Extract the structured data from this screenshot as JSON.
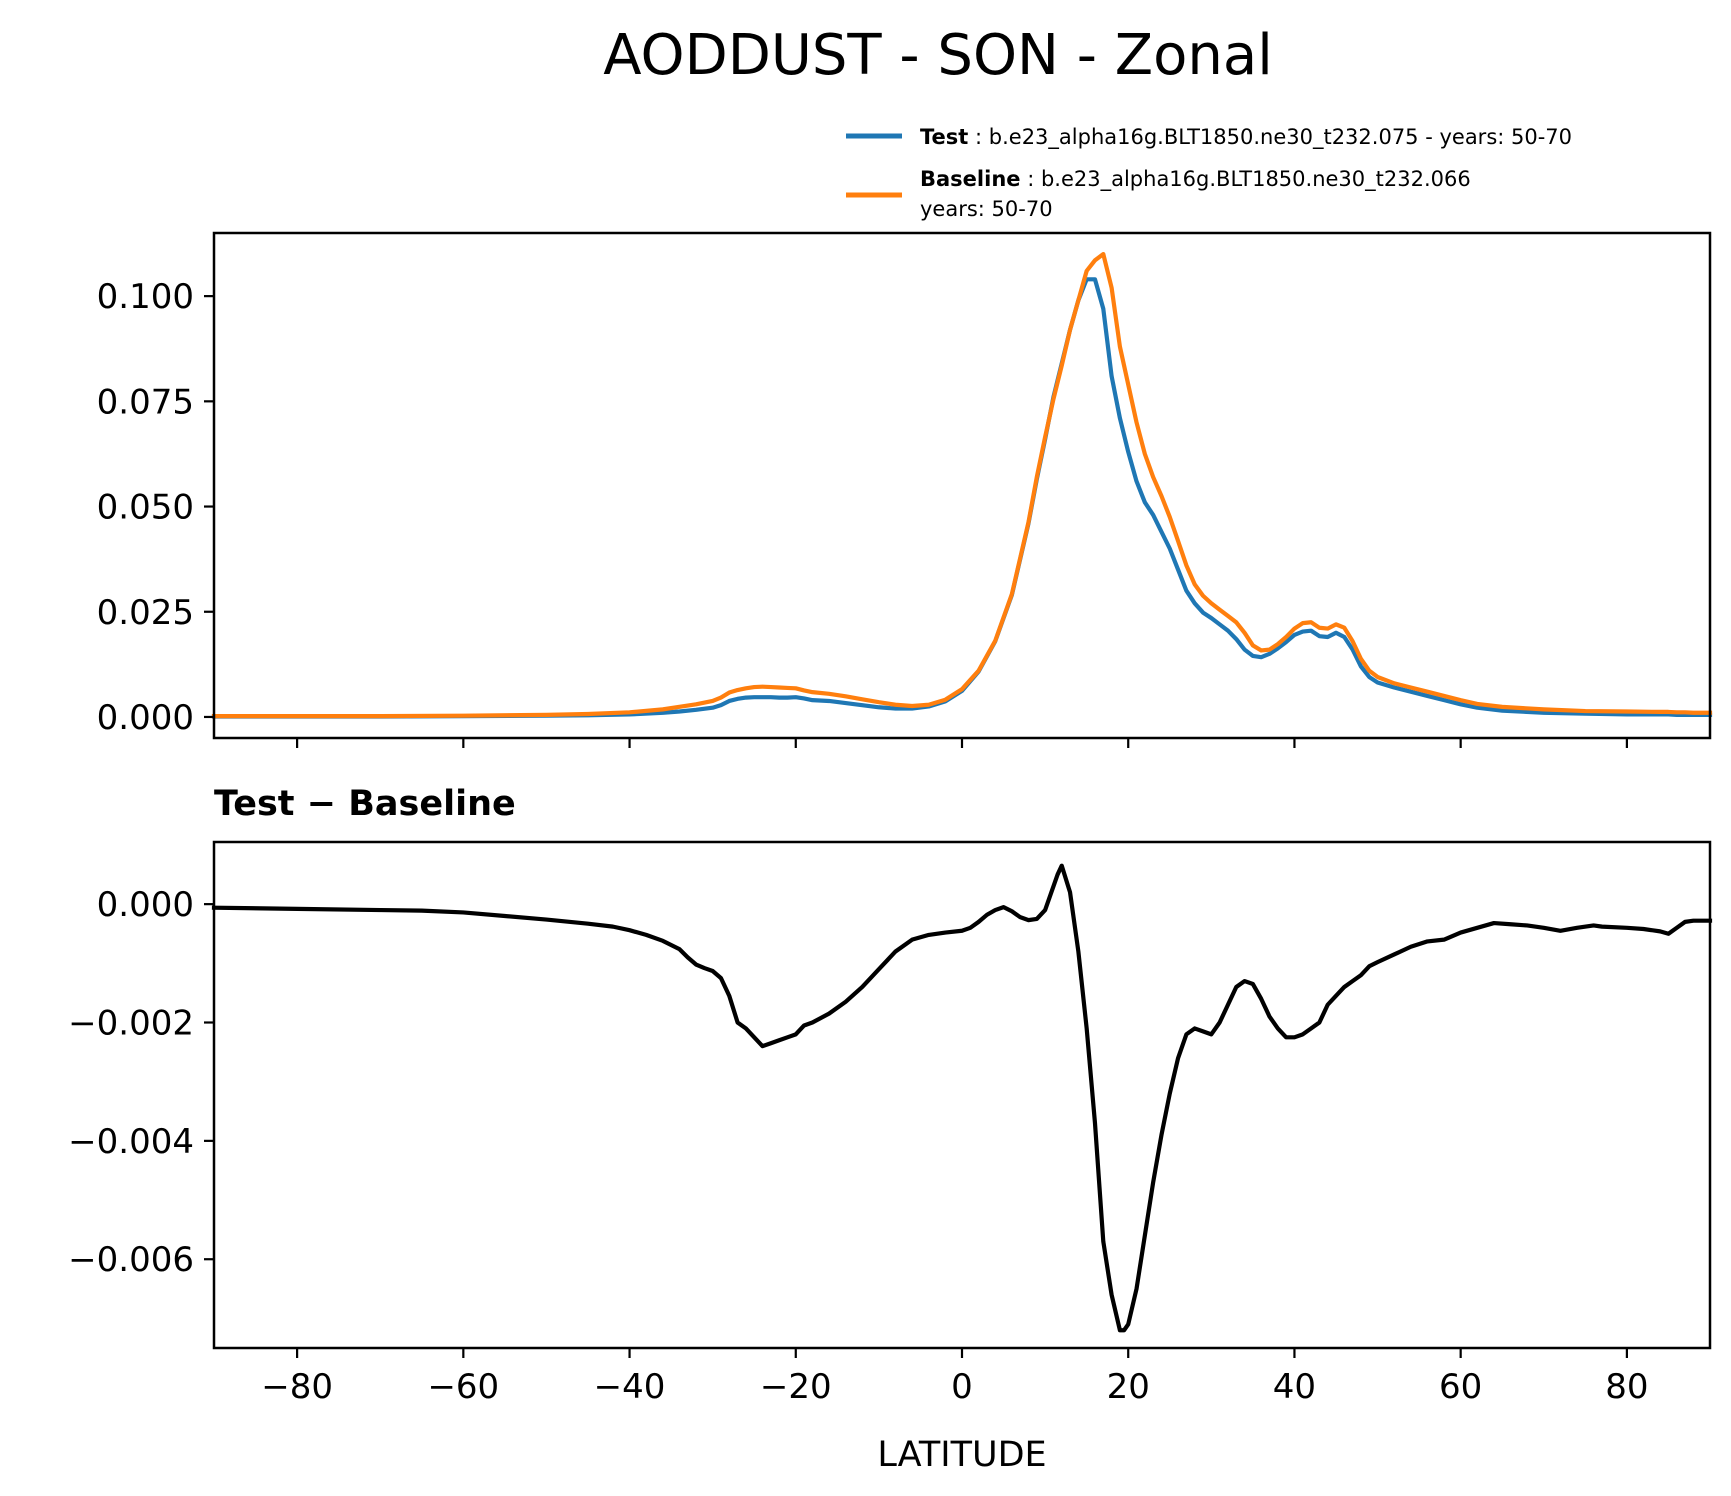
{
  "chart_data": [
    {
      "type": "line",
      "title": "AODDUST - SON - Zonal",
      "xlabel": "",
      "ylabel": "",
      "xlim": [
        -90,
        90
      ],
      "ylim": [
        -0.005,
        0.115
      ],
      "x_ticks": [
        -80,
        -60,
        -40,
        -20,
        0,
        20,
        40,
        60,
        80
      ],
      "y_ticks": [
        0.0,
        0.025,
        0.05,
        0.075,
        0.1
      ],
      "y_tick_labels": [
        "0.000",
        "0.025",
        "0.050",
        "0.075",
        "0.100"
      ],
      "legend": {
        "placement": "above-top-right",
        "entries": [
          {
            "bold": "Test",
            "sep": " : ",
            "text": "b.e23_alpha16g.BLT1850.ne30_t232.075 - years: 50-70",
            "text2": ""
          },
          {
            "bold": "Baseline",
            "sep": " : ",
            "text": "b.e23_alpha16g.BLT1850.ne30_t232.066",
            "text2": "years: 50-70"
          }
        ]
      },
      "x": [
        -90,
        -80,
        -70,
        -60,
        -50,
        -45,
        -40,
        -36,
        -34,
        -32,
        -30,
        -29,
        -28,
        -27,
        -26,
        -25,
        -24,
        -23,
        -22,
        -21,
        -20,
        -19,
        -18,
        -16,
        -14,
        -12,
        -10,
        -8,
        -6,
        -4,
        -2,
        0,
        2,
        4,
        6,
        8,
        9,
        10,
        11,
        12,
        13,
        14,
        15,
        16,
        17,
        18,
        19,
        20,
        21,
        22,
        23,
        24,
        25,
        26,
        27,
        28,
        29,
        30,
        31,
        32,
        33,
        34,
        35,
        36,
        37,
        38,
        39,
        40,
        41,
        42,
        43,
        44,
        45,
        46,
        47,
        48,
        49,
        50,
        52,
        54,
        56,
        58,
        60,
        62,
        65,
        70,
        75,
        80,
        84,
        85,
        86,
        87,
        88,
        90
      ],
      "series": [
        {
          "name": "Test",
          "color": "#1f77b4",
          "values": [
            0.0001,
            0.0001,
            0.0001,
            0.0002,
            0.0003,
            0.0004,
            0.0006,
            0.001,
            0.0013,
            0.0017,
            0.0022,
            0.0028,
            0.0038,
            0.0043,
            0.0046,
            0.0047,
            0.0047,
            0.0047,
            0.0046,
            0.0046,
            0.0047,
            0.0044,
            0.004,
            0.0038,
            0.0033,
            0.0028,
            0.0023,
            0.002,
            0.002,
            0.0025,
            0.0037,
            0.0062,
            0.0108,
            0.018,
            0.029,
            0.046,
            0.0565,
            0.066,
            0.076,
            0.084,
            0.092,
            0.099,
            0.104,
            0.104,
            0.097,
            0.081,
            0.071,
            0.063,
            0.056,
            0.051,
            0.048,
            0.044,
            0.04,
            0.035,
            0.03,
            0.027,
            0.0248,
            0.0235,
            0.022,
            0.0205,
            0.0185,
            0.016,
            0.0145,
            0.0142,
            0.015,
            0.0163,
            0.0178,
            0.0195,
            0.0203,
            0.0205,
            0.0192,
            0.019,
            0.02,
            0.019,
            0.016,
            0.012,
            0.0095,
            0.0082,
            0.007,
            0.006,
            0.005,
            0.004,
            0.003,
            0.0022,
            0.0015,
            0.001,
            0.0008,
            0.0006,
            0.0006,
            0.0006,
            0.0005,
            0.0005,
            0.0005,
            0.0005
          ]
        },
        {
          "name": "Baseline",
          "color": "#ff7f0e",
          "values": [
            0.0002,
            0.0002,
            0.0002,
            0.0003,
            0.0005,
            0.0007,
            0.0011,
            0.0018,
            0.0024,
            0.003,
            0.0038,
            0.0046,
            0.0058,
            0.0064,
            0.0068,
            0.0071,
            0.0072,
            0.0071,
            0.007,
            0.0069,
            0.0068,
            0.0063,
            0.0059,
            0.0055,
            0.0049,
            0.0042,
            0.0035,
            0.0029,
            0.0026,
            0.0029,
            0.0041,
            0.0066,
            0.011,
            0.0181,
            0.0292,
            0.0463,
            0.057,
            0.0665,
            0.0755,
            0.0835,
            0.092,
            0.099,
            0.106,
            0.1085,
            0.11,
            0.102,
            0.088,
            0.079,
            0.07,
            0.0625,
            0.057,
            0.0525,
            0.0475,
            0.0418,
            0.036,
            0.0315,
            0.0288,
            0.027,
            0.0255,
            0.024,
            0.0225,
            0.02,
            0.017,
            0.0158,
            0.016,
            0.0173,
            0.019,
            0.021,
            0.0223,
            0.0225,
            0.0212,
            0.021,
            0.022,
            0.0212,
            0.018,
            0.0138,
            0.011,
            0.0095,
            0.008,
            0.007,
            0.006,
            0.005,
            0.004,
            0.0031,
            0.0024,
            0.0018,
            0.0014,
            0.0013,
            0.0012,
            0.0012,
            0.0011,
            0.0011,
            0.001,
            0.001
          ]
        }
      ]
    },
    {
      "type": "line",
      "title": "Test − Baseline",
      "xlabel": "LATITUDE",
      "ylabel": "",
      "xlim": [
        -90,
        90
      ],
      "ylim": [
        -0.0075,
        0.00105
      ],
      "x_ticks": [
        -80,
        -60,
        -40,
        -20,
        0,
        20,
        40,
        60,
        80
      ],
      "x_tick_labels": [
        "−80",
        "−60",
        "−40",
        "−20",
        "0",
        "20",
        "40",
        "60",
        "80"
      ],
      "y_ticks": [
        0.0,
        -0.002,
        -0.004,
        -0.006
      ],
      "y_tick_labels": [
        "0.000",
        "−0.002",
        "−0.004",
        "−0.006"
      ],
      "x": [
        -90,
        -80,
        -70,
        -65,
        -60,
        -55,
        -50,
        -45,
        -42,
        -40,
        -38,
        -36,
        -34,
        -33,
        -32,
        -31,
        -30,
        -29,
        -28,
        -27,
        -26,
        -25,
        -24,
        -23,
        -22,
        -21,
        -20,
        -19,
        -18,
        -16,
        -14,
        -12,
        -10,
        -8,
        -6,
        -4,
        -2,
        0,
        1,
        2,
        3,
        4,
        5,
        6,
        7,
        8,
        9,
        10,
        11,
        11.5,
        12,
        13,
        14,
        15,
        16,
        17,
        18,
        19,
        19.5,
        20,
        21,
        22,
        23,
        24,
        25,
        26,
        27,
        28,
        29,
        30,
        31,
        32,
        33,
        34,
        35,
        36,
        37,
        38,
        39,
        40,
        41,
        42,
        43,
        44,
        45,
        46,
        47,
        48,
        49,
        50,
        52,
        54,
        56,
        58,
        60,
        62,
        64,
        66,
        68,
        70,
        72,
        74,
        76,
        77,
        80,
        82,
        84,
        85,
        86,
        87,
        88,
        90
      ],
      "series": [
        {
          "name": "Test − Baseline",
          "color": "#000000",
          "values": [
            -6e-05,
            -8e-05,
            -0.0001,
            -0.00011,
            -0.00014,
            -0.0002,
            -0.00026,
            -0.00033,
            -0.00038,
            -0.00044,
            -0.00052,
            -0.00062,
            -0.00076,
            -0.0009,
            -0.00102,
            -0.00108,
            -0.00113,
            -0.00125,
            -0.00155,
            -0.002,
            -0.0021,
            -0.00225,
            -0.0024,
            -0.00235,
            -0.0023,
            -0.00225,
            -0.0022,
            -0.00205,
            -0.002,
            -0.00185,
            -0.00165,
            -0.0014,
            -0.0011,
            -0.0008,
            -0.0006,
            -0.00052,
            -0.00048,
            -0.00045,
            -0.0004,
            -0.0003,
            -0.00018,
            -0.0001,
            -5e-05,
            -0.00012,
            -0.00022,
            -0.00027,
            -0.00025,
            -0.0001,
            0.0003,
            0.0005,
            0.00065,
            0.0002,
            -0.0008,
            -0.0021,
            -0.0037,
            -0.0057,
            -0.0066,
            -0.0072,
            -0.0072,
            -0.0071,
            -0.0065,
            -0.0056,
            -0.0047,
            -0.0039,
            -0.0032,
            -0.0026,
            -0.0022,
            -0.0021,
            -0.00215,
            -0.0022,
            -0.002,
            -0.0017,
            -0.0014,
            -0.0013,
            -0.00135,
            -0.0016,
            -0.0019,
            -0.0021,
            -0.00225,
            -0.00225,
            -0.0022,
            -0.0021,
            -0.002,
            -0.0017,
            -0.00155,
            -0.0014,
            -0.0013,
            -0.0012,
            -0.00105,
            -0.00098,
            -0.00085,
            -0.00072,
            -0.00063,
            -0.0006,
            -0.00048,
            -0.0004,
            -0.00032,
            -0.00034,
            -0.00036,
            -0.0004,
            -0.00045,
            -0.0004,
            -0.00036,
            -0.00038,
            -0.0004,
            -0.00042,
            -0.00046,
            -0.0005,
            -0.0004,
            -0.0003,
            -0.00028,
            -0.00028
          ]
        }
      ]
    }
  ]
}
